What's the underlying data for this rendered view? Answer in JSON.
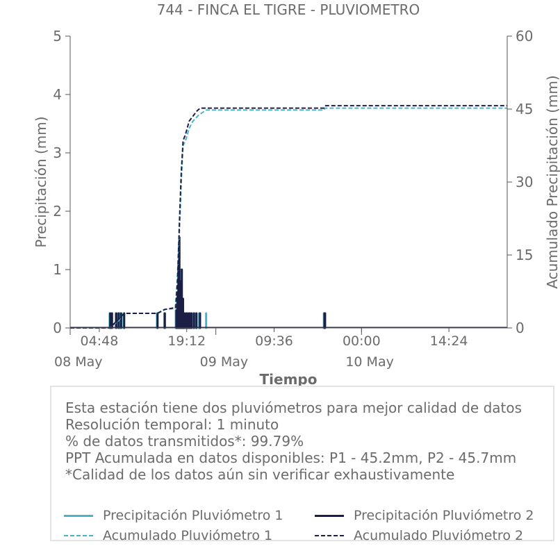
{
  "chart_data": {
    "type": "line",
    "title": "744 - FINCA EL TIGRE - PLUVIOMETRO",
    "xlabel": "Tiempo",
    "ylabel": "Precipitación (mm)",
    "y2label": "Acumulado Precipitación (mm)",
    "ylim": [
      0,
      5
    ],
    "y2lim": [
      0,
      60
    ],
    "yticks": [
      "0",
      "1",
      "2",
      "3",
      "4",
      "5"
    ],
    "y2ticks": [
      "0",
      "15",
      "30",
      "45",
      "60"
    ],
    "x_hours_range": [
      0,
      72
    ],
    "xticks": [
      {
        "hour": 4.8,
        "label": "04:48"
      },
      {
        "hour": 19.2,
        "label": "19:12"
      },
      {
        "hour": 33.6,
        "label": "09:36"
      },
      {
        "hour": 48.0,
        "label": "00:00"
      },
      {
        "hour": 62.4,
        "label": "14:24"
      }
    ],
    "xticks_minor": [
      0,
      24,
      48
    ],
    "date_labels": [
      {
        "hour": 0,
        "label": "08 May"
      },
      {
        "hour": 24,
        "label": "09 May"
      },
      {
        "hour": 48,
        "label": "10 May"
      }
    ],
    "series": [
      {
        "name": "Precipitación Pluviómetro 1",
        "style": "bars",
        "color": "#4bb3c8",
        "events": [
          [
            6.5,
            0.25
          ],
          [
            6.8,
            0.25
          ],
          [
            7.5,
            0.25
          ],
          [
            7.9,
            0.25
          ],
          [
            8.2,
            0.25
          ],
          [
            8.8,
            0.25
          ],
          [
            14.3,
            0.25
          ],
          [
            15.5,
            0.25
          ],
          [
            17.4,
            0.3
          ],
          [
            17.6,
            0.5
          ],
          [
            17.8,
            1.0
          ],
          [
            17.9,
            1.4
          ],
          [
            18.1,
            0.8
          ],
          [
            18.3,
            1.0
          ],
          [
            18.5,
            0.5
          ],
          [
            18.7,
            0.25
          ],
          [
            19.0,
            0.25
          ],
          [
            19.3,
            0.25
          ],
          [
            19.6,
            0.25
          ],
          [
            19.9,
            0.25
          ],
          [
            20.3,
            0.25
          ],
          [
            20.7,
            0.25
          ],
          [
            21.2,
            0.25
          ],
          [
            22.4,
            0.25
          ],
          [
            41.8,
            0.25
          ]
        ]
      },
      {
        "name": "Precipitación Pluviómetro 2",
        "style": "bars",
        "color": "#1c1f45",
        "events": [
          [
            6.6,
            0.25
          ],
          [
            6.9,
            0.25
          ],
          [
            7.6,
            0.25
          ],
          [
            8.0,
            0.25
          ],
          [
            8.4,
            0.25
          ],
          [
            8.9,
            0.25
          ],
          [
            14.4,
            0.25
          ],
          [
            15.6,
            0.25
          ],
          [
            17.5,
            0.3
          ],
          [
            17.7,
            0.6
          ],
          [
            17.85,
            1.1
          ],
          [
            18.0,
            1.55
          ],
          [
            18.2,
            0.8
          ],
          [
            18.4,
            1.0
          ],
          [
            18.6,
            0.5
          ],
          [
            18.8,
            0.25
          ],
          [
            19.1,
            0.25
          ],
          [
            19.4,
            0.25
          ],
          [
            19.7,
            0.25
          ],
          [
            20.0,
            0.25
          ],
          [
            20.4,
            0.25
          ],
          [
            20.8,
            0.25
          ],
          [
            21.4,
            0.25
          ],
          [
            41.9,
            0.25
          ],
          [
            42.0,
            0.25
          ]
        ]
      },
      {
        "name": "Acumulado Pluviómetro 1",
        "style": "dashed",
        "color": "#4bb3c8",
        "points": [
          [
            0,
            0
          ],
          [
            6.5,
            0
          ],
          [
            6.8,
            0.3
          ],
          [
            8.0,
            1.5
          ],
          [
            8.8,
            3.0
          ],
          [
            14.3,
            3.0
          ],
          [
            15.5,
            3.8
          ],
          [
            17.3,
            4.0
          ],
          [
            17.6,
            9.0
          ],
          [
            18.0,
            20.0
          ],
          [
            18.3,
            30.0
          ],
          [
            18.6,
            37.5
          ],
          [
            19.0,
            38.5
          ],
          [
            19.6,
            41.0
          ],
          [
            20.2,
            42.5
          ],
          [
            21.2,
            43.8
          ],
          [
            22.4,
            44.8
          ],
          [
            41.8,
            44.8
          ],
          [
            42.0,
            45.2
          ],
          [
            72,
            45.2
          ]
        ]
      },
      {
        "name": "Acumulado Pluviómetro 2",
        "style": "dashed",
        "color": "#1c1f45",
        "points": [
          [
            0,
            0
          ],
          [
            6.6,
            0
          ],
          [
            6.9,
            0.5
          ],
          [
            8.0,
            1.8
          ],
          [
            8.9,
            3.0
          ],
          [
            14.4,
            3.0
          ],
          [
            15.6,
            3.8
          ],
          [
            17.4,
            4.2
          ],
          [
            17.7,
            10.0
          ],
          [
            18.0,
            22.0
          ],
          [
            18.3,
            32.0
          ],
          [
            18.6,
            38.5
          ],
          [
            19.0,
            39.8
          ],
          [
            19.6,
            42.5
          ],
          [
            20.2,
            43.5
          ],
          [
            20.8,
            44.5
          ],
          [
            21.4,
            45.2
          ],
          [
            41.9,
            45.2
          ],
          [
            42.1,
            45.7
          ],
          [
            72,
            45.7
          ]
        ]
      }
    ]
  },
  "info": {
    "lines": [
      "Esta estación tiene dos pluviómetros para mejor calidad de datos",
      "Resolución temporal: 1 minuto",
      "% de datos transmitidos*: 99.79%",
      "PPT Acumulada en datos disponibles: P1 - 45.2mm, P2 - 45.7mm",
      "*Calidad de los datos aún sin verificar exhaustivamente"
    ]
  },
  "legend": {
    "items": [
      {
        "label": "Precipitación Pluviómetro 1",
        "color": "#4bb3c8",
        "style": "solid"
      },
      {
        "label": "Precipitación Pluviómetro 2",
        "color": "#1c1f45",
        "style": "solid"
      },
      {
        "label": "Acumulado Pluviómetro 1",
        "color": "#4bb3c8",
        "style": "dashed"
      },
      {
        "label": "Acumulado Pluviómetro 2",
        "color": "#1c1f45",
        "style": "dashed"
      }
    ]
  }
}
